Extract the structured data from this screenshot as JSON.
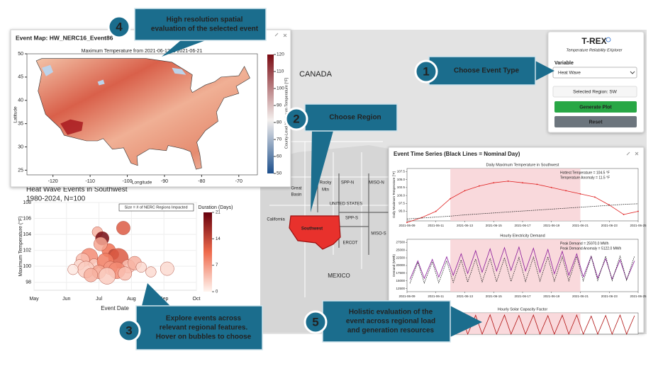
{
  "app": {
    "title": "T-REX",
    "subtitle": "Temperature Reliability EXplorer",
    "variable_label": "Variable",
    "variable_value": "Heat Wave",
    "selected_region": "Selected Region: SW",
    "buttons": [
      "Generate Plot",
      "Reset"
    ]
  },
  "map": {
    "labels": [
      "CANADA",
      "Great",
      "Basin",
      "California",
      "Rocky",
      "Mtn",
      "SPP-N",
      "MISO-N",
      "UNITED STATES",
      "SPP-S",
      "MISO-S",
      "ERCOT",
      "MEXICO",
      "Southwest"
    ]
  },
  "callouts": [
    {
      "number": "1",
      "lines": [
        "Choose Event Type"
      ]
    },
    {
      "number": "2",
      "lines": [
        "Choose Region"
      ]
    },
    {
      "number": "3",
      "lines": [
        "Explore events across",
        "relevant regional features.",
        "Hover on bubbles to choose"
      ]
    },
    {
      "number": "4",
      "lines": [
        "High resolution spatial",
        "evaluation of the selected event"
      ]
    },
    {
      "number": "5",
      "lines": [
        "Holistic evaluation of the",
        "event across regional load",
        "and generation resources"
      ]
    }
  ],
  "event_map": {
    "type": "map",
    "window_title": "Event Map: HW_NERC16_Event86",
    "title": "Maximum Temperature from 2021-06-12 to 2021-06-21",
    "xlabel": "Longitude",
    "ylabel": "Latitude",
    "colorbar_label": "County-Level Maximum Temperature [°F]",
    "xlim": [
      -127,
      -65
    ],
    "ylim": [
      24,
      50
    ],
    "xticks": [
      -120,
      -110,
      -100,
      -90,
      -80,
      -70
    ],
    "yticks": [
      50,
      45,
      40,
      35,
      30,
      25
    ],
    "clim": [
      50,
      120
    ],
    "cticks": [
      120,
      110,
      100,
      90,
      80,
      70,
      60,
      50
    ]
  },
  "event_chart": {
    "type": "bubble",
    "title": "Heat Wave Events in Southwest",
    "subtitle": "1980-2024, N=100",
    "ylabel": "Maximum Temperature (°F)",
    "xlabel": "Event Date",
    "size_note": "Size = # of NERC Regions Impacted",
    "colorbar_title": "Duration (Days)",
    "xlim": [
      5,
      10
    ],
    "xticks": [
      {
        "value": 5,
        "label": "May"
      },
      {
        "value": 6,
        "label": "Jun"
      },
      {
        "value": 7,
        "label": "Jul"
      },
      {
        "value": 8,
        "label": "Aug"
      },
      {
        "value": 9,
        "label": "Sep"
      },
      {
        "value": 10,
        "label": "Oct"
      }
    ],
    "ylim": [
      97,
      108
    ],
    "yticks": [
      98,
      100,
      102,
      104,
      106,
      108
    ],
    "clim": [
      0,
      21
    ],
    "cticks": [
      0,
      7,
      14,
      21
    ],
    "x": [
      6.95,
      7.1,
      7.75,
      6.7,
      7.3,
      7.45,
      7.05,
      6.5,
      7.6,
      6.85,
      7.2,
      7.9,
      6.4,
      7.35,
      8.1,
      6.6,
      7.55,
      8.3,
      7.0,
      6.2,
      7.8,
      8.6,
      6.75,
      7.25,
      9.1
    ],
    "y": [
      104.3,
      103.5,
      104.8,
      101.2,
      102.0,
      101.5,
      102.8,
      100.8,
      101.0,
      100.3,
      100.6,
      100.0,
      100.2,
      99.8,
      100.4,
      99.6,
      99.5,
      99.9,
      99.3,
      99.6,
      99.1,
      99.3,
      98.9,
      98.8,
      99.7
    ],
    "size": [
      2,
      3,
      3,
      4,
      3,
      2,
      3,
      3,
      5,
      2,
      4,
      3,
      2,
      3,
      3,
      4,
      4,
      2,
      3,
      2,
      3,
      2,
      3,
      4,
      3
    ],
    "duration": [
      5,
      20,
      12,
      8,
      10,
      14,
      6,
      4,
      12,
      3,
      9,
      4,
      2,
      7,
      5,
      3,
      8,
      2,
      6,
      1,
      4,
      2,
      5,
      3,
      2
    ]
  },
  "time_series": {
    "type": "line",
    "window_title": "Event Time Series (Black Lines = Nominal Day)",
    "xlim": [
      9,
      25
    ],
    "highlight": [
      12,
      21
    ],
    "xticks": [
      {
        "value": 9,
        "label": "2021-06-09"
      },
      {
        "value": 11,
        "label": "2021-06-11"
      },
      {
        "value": 13,
        "label": "2021-06-13"
      },
      {
        "value": 15,
        "label": "2021-06-15"
      },
      {
        "value": 17,
        "label": "2021-06-17"
      },
      {
        "value": 19,
        "label": "2021-06-19"
      },
      {
        "value": 21,
        "label": "2021-06-21"
      },
      {
        "value": 23,
        "label": "2021-06-23"
      },
      {
        "value": 25,
        "label": "2021-06-25"
      }
    ],
    "panels": [
      {
        "title": "Daily Maximum Temperature in Southwest",
        "ylabel": "Daily Maximum Temperature [°F]",
        "annotations": [
          "Hottest Temperature = 104.5 °F",
          "Temperature Anomaly = 11.5 °F"
        ],
        "ylim": [
          92,
          108.5
        ],
        "yticks": [
          {
            "value": 95,
            "label": "95.0"
          },
          {
            "value": 97.5,
            "label": "97.5"
          },
          {
            "value": 100,
            "label": "100.0"
          },
          {
            "value": 102.5,
            "label": "102.5"
          },
          {
            "value": 105,
            "label": "105.0"
          },
          {
            "value": 107.5,
            "label": "107.5"
          }
        ],
        "x": [
          9,
          10,
          11,
          12,
          13,
          14,
          15,
          16,
          17,
          18,
          19,
          20,
          21,
          22,
          23,
          24,
          25
        ],
        "series": [
          {
            "name": "Event",
            "color": "#e02020",
            "values": [
              91.5,
              93,
              95,
              99,
              101.5,
              103,
              104,
              104.5,
              104,
              103.5,
              102.5,
              101.5,
              100.5,
              99.5,
              97,
              94,
              95
            ]
          },
          {
            "name": "Nominal",
            "color": "#222222",
            "values": [
              92.6,
              92.9,
              93.2,
              93.5,
              93.9,
              94.2,
              94.5,
              94.8,
              95.1,
              95.4,
              95.7,
              96.0,
              96.3,
              96.6,
              96.9,
              97.2,
              97.4
            ]
          }
        ]
      },
      {
        "title": "Hourly Electricity Demand",
        "ylabel": "Demand (MWh)",
        "annotations": [
          "Peak Demand = 25970.0 MWh",
          "Peak Demand Anomaly = 5122.0 MWh"
        ],
        "ylim": [
          11500,
          28500
        ],
        "yticks": [
          12500,
          15000,
          17500,
          20000,
          22500,
          25000,
          27500
        ],
        "x": [
          9.2,
          9.75,
          10.2,
          10.75,
          11.2,
          11.75,
          12.2,
          12.75,
          13.2,
          13.75,
          14.2,
          14.75,
          15.2,
          15.75,
          16.2,
          16.75,
          17.2,
          17.75,
          18.2,
          18.75,
          19.2,
          19.75,
          20.2,
          20.75,
          21.2,
          21.75,
          22.2,
          22.75,
          23.2,
          23.75,
          24.2,
          24.75
        ],
        "series": [
          {
            "name": "Event",
            "color": "#8a1a9a",
            "values": [
              15500,
              21500,
              15800,
              22000,
              16200,
              22800,
              16800,
              23800,
              17400,
              24800,
              17800,
              25400,
              18200,
              25800,
              18400,
              25970,
              18200,
              25600,
              17800,
              25200,
              17300,
              24600,
              16800,
              23800,
              16300,
              23000,
              15900,
              22200,
              15600,
              21800,
              15400,
              21500
            ]
          },
          {
            "name": "Nominal",
            "color": "#222222",
            "values": [
              14200,
              21000,
              14300,
              21200,
              14400,
              21500,
              14500,
              21800,
              14600,
              22100,
              14700,
              22300,
              14700,
              22500,
              14800,
              22600,
              14800,
              22700,
              14900,
              22800,
              14900,
              22800,
              15000,
              22900,
              15000,
              22900,
              15100,
              23000,
              15100,
              23000,
              15200,
              23100
            ]
          }
        ]
      },
      {
        "title": "Hourly Solar Capacity Factor",
        "ylim": [
          0,
          1
        ],
        "x": [
          9.2,
          9.75,
          10.2,
          10.75,
          11.2,
          11.75,
          12.2,
          12.75,
          13.2,
          13.75,
          14.2,
          14.75,
          15.2,
          15.75,
          16.2,
          16.75,
          17.2,
          17.75,
          18.2,
          18.75,
          19.2,
          19.75,
          20.2,
          20.75,
          21.2,
          21.75,
          22.2,
          22.75,
          23.2,
          23.75,
          24.2,
          24.75
        ],
        "series": [
          {
            "name": "Event",
            "color": "#b01010",
            "values": [
              0,
              0.88,
              0,
              0.9,
              0,
              0.86,
              0,
              0.9,
              0,
              0.89,
              0,
              0.91,
              0,
              0.9,
              0,
              0.88,
              0,
              0.9,
              0,
              0.87,
              0,
              0.89,
              0,
              0.9,
              0,
              0.85,
              0,
              0.88,
              0,
              0.9,
              0,
              0.87
            ]
          }
        ]
      }
    ]
  }
}
